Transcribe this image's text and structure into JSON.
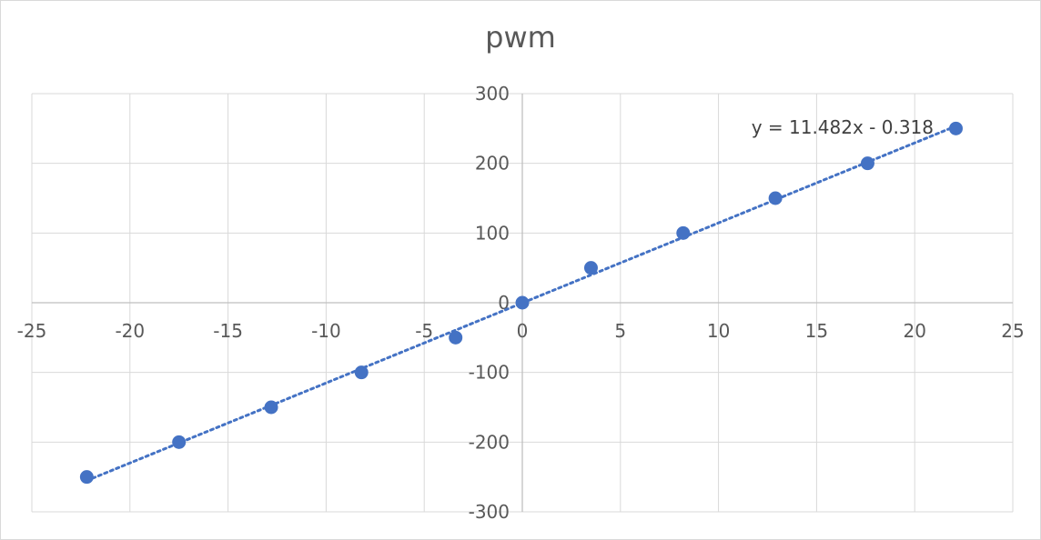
{
  "chart_data": {
    "type": "scatter",
    "title": "pwm",
    "xlabel": "",
    "ylabel": "",
    "xlim": [
      -25,
      25
    ],
    "ylim": [
      -300,
      300
    ],
    "x_ticks": [
      -25,
      -20,
      -15,
      -10,
      -5,
      0,
      5,
      10,
      15,
      20,
      25
    ],
    "y_ticks": [
      -300,
      -200,
      -100,
      0,
      100,
      200,
      300
    ],
    "x_tick_labels": [
      "-25",
      "-20",
      "-15",
      "-10",
      "-5",
      "0",
      "5",
      "10",
      "15",
      "20",
      "25"
    ],
    "y_tick_labels": [
      "-300",
      "-200",
      "-100",
      "0",
      "100",
      "200",
      "300"
    ],
    "grid": true,
    "legend": "none",
    "series": [
      {
        "x": [
          -22.2,
          -17.5,
          -12.8,
          -8.2,
          -3.4,
          0,
          3.5,
          8.2,
          12.9,
          17.6,
          22.1
        ],
        "y": [
          -250,
          -200,
          -150,
          -100,
          -50,
          0,
          50,
          100,
          150,
          200,
          250
        ],
        "color": "#4472c4"
      }
    ],
    "trendline": {
      "type": "linear",
      "slope": 11.482,
      "intercept": -0.318,
      "x_range": [
        -22.2,
        22.1
      ],
      "style": "dotted",
      "color": "#4472c4",
      "equation_label": "y = 11.482x - 0.318"
    }
  }
}
